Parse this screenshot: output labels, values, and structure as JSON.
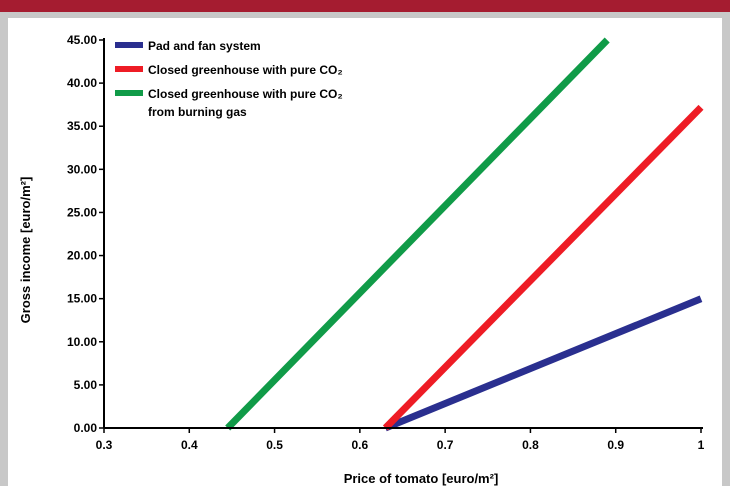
{
  "chart_data": {
    "type": "line",
    "title": "",
    "xlabel": "Price of tomato [euro/m²]",
    "ylabel": "Gross income [euro/m²]",
    "xlim": [
      0.3,
      1.0
    ],
    "ylim": [
      0,
      45
    ],
    "x_ticks": [
      "0.3",
      "0.4",
      "0.5",
      "0.6",
      "0.7",
      "0.8",
      "0.9",
      "1"
    ],
    "y_ticks": [
      "0.00",
      "5.00",
      "10.00",
      "15.00",
      "20.00",
      "25.00",
      "30.00",
      "35.00",
      "40.00",
      "45.00"
    ],
    "y_tick_values": [
      0,
      5,
      10,
      15,
      20,
      25,
      30,
      35,
      40,
      45
    ],
    "legend_position": "top-left",
    "grid": false,
    "series": [
      {
        "name": "Pad and fan system",
        "color": "#2a2f8f",
        "points": [
          [
            0.63,
            0
          ],
          [
            1.0,
            15
          ]
        ]
      },
      {
        "name": "Closed greenhouse with pure CO₂",
        "color": "#ee1c25",
        "points": [
          [
            0.63,
            0
          ],
          [
            1.0,
            37.2
          ]
        ]
      },
      {
        "name": "Closed greenhouse with pure CO₂ from burning gas",
        "color": "#109b48",
        "points": [
          [
            0.445,
            0
          ],
          [
            0.89,
            45
          ]
        ]
      }
    ],
    "legend_labels": [
      [
        "Pad and fan system"
      ],
      [
        "Closed greenhouse with pure CO₂"
      ],
      [
        "Closed greenhouse with pure CO₂",
        "from burning gas"
      ]
    ]
  }
}
